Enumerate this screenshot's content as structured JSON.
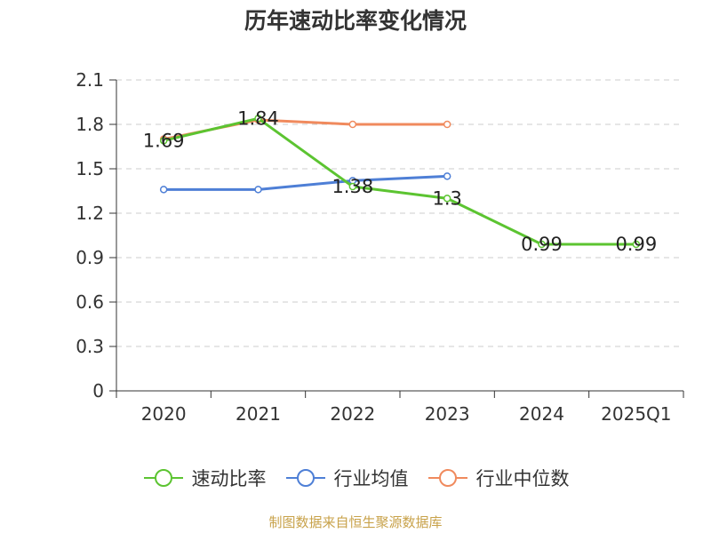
{
  "chart_data": {
    "type": "line",
    "title": "历年速动比率变化情况",
    "categories": [
      "2020",
      "2021",
      "2022",
      "2023",
      "2024",
      "2025Q1"
    ],
    "ylim": [
      0,
      2.1
    ],
    "yticks": [
      "0",
      "0.3",
      "0.6",
      "0.9",
      "1.2",
      "1.5",
      "1.8",
      "2.1"
    ],
    "grid": true,
    "legend_position": "bottom",
    "series": [
      {
        "name": "速动比率",
        "color": "#5cc431",
        "values": [
          1.69,
          1.84,
          1.38,
          1.3,
          0.99,
          0.99
        ],
        "labels": [
          "1.69",
          "1.84",
          "1.38",
          "1.3",
          "0.99",
          "0.99"
        ]
      },
      {
        "name": "行业均值",
        "color": "#4e7fd6",
        "values": [
          1.36,
          1.36,
          1.42,
          1.45,
          null,
          null
        ]
      },
      {
        "name": "行业中位数",
        "color": "#f08a5d",
        "values": [
          1.7,
          1.83,
          1.8,
          1.8,
          null,
          null
        ]
      }
    ]
  },
  "source_text": "制图数据来自恒生聚源数据库"
}
